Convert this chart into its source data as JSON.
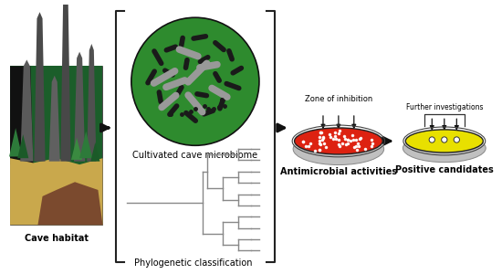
{
  "bg_color": "#ffffff",
  "cave_label": "Cave habitat",
  "microbiome_label": "Cultivated cave microbiome",
  "phylo_label": "Phylogenetic classification",
  "antimicrobial_label": "Antimicrobial activities",
  "positive_label": "Positive candidates",
  "inhibition_label": "Zone of inhibition",
  "further_label": "Further investigations",
  "bracket_color": "#222222",
  "arrow_color": "#111111",
  "circle_green": "#2e8b2e",
  "bacteria_dark": "#1a1a1a",
  "bacteria_gray": "#999999",
  "petri_red_fill": "#dd2211",
  "petri_yellow_fill": "#e8e000",
  "tree_color": "#888888",
  "font_size": 7.0
}
